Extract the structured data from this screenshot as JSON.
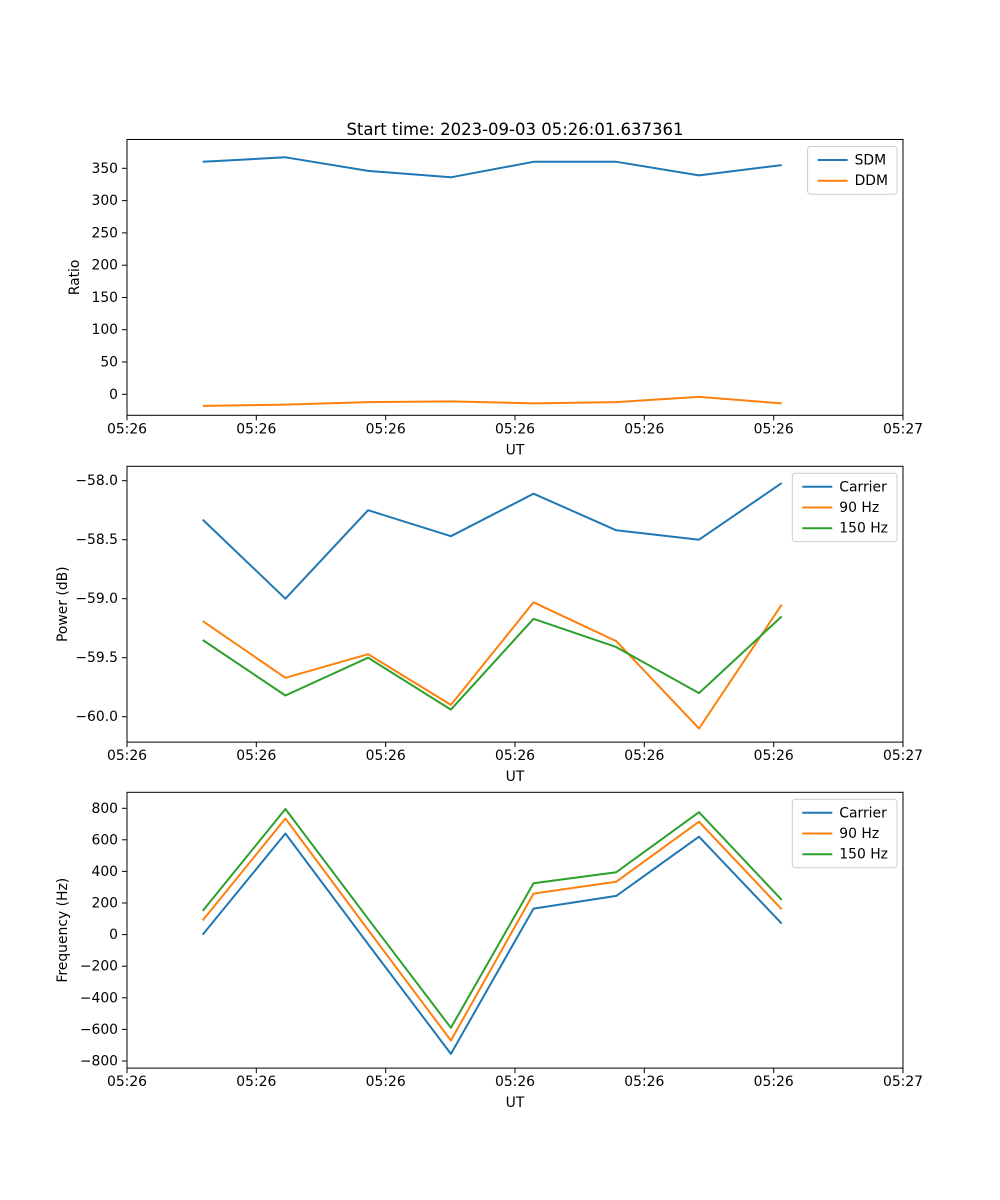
{
  "title": "Start time: 2023-09-03 05:26:01.637361",
  "palette": {
    "blue": "#1f77b4",
    "orange": "#ff7f0e",
    "green": "#2ca02c"
  },
  "chart_data": [
    {
      "type": "line",
      "title": "Start time: 2023-09-03 05:26:01.637361",
      "xlabel": "UT",
      "ylabel": "Ratio",
      "x_tick_labels": [
        "05:26",
        "05:26",
        "05:26",
        "05:26",
        "05:26",
        "05:26",
        "05:27"
      ],
      "x_range": [
        0,
        6
      ],
      "x": [
        0.585,
        1.225,
        1.864,
        2.504,
        3.143,
        3.783,
        4.423,
        5.062
      ],
      "ylim": [
        -32.5,
        394.6
      ],
      "y_ticks": [
        0,
        50,
        100,
        150,
        200,
        250,
        300,
        350
      ],
      "y_tick_labels": [
        "0",
        "50",
        "100",
        "150",
        "200",
        "250",
        "300",
        "350"
      ],
      "legend_position": "upper right",
      "grid": false,
      "series": [
        {
          "name": "SDM",
          "color": "#1f77b4",
          "values": [
            360,
            367,
            346,
            336,
            360,
            360,
            339,
            355
          ]
        },
        {
          "name": "DDM",
          "color": "#ff7f0e",
          "values": [
            -18,
            -16,
            -12,
            -11,
            -14,
            -12,
            -4,
            -14
          ]
        }
      ]
    },
    {
      "type": "line",
      "title": "",
      "xlabel": "UT",
      "ylabel": "Power (dB)",
      "x_tick_labels": [
        "05:26",
        "05:26",
        "05:26",
        "05:26",
        "05:26",
        "05:26",
        "05:27"
      ],
      "x_range": [
        0,
        6
      ],
      "x": [
        0.585,
        1.225,
        1.864,
        2.504,
        3.143,
        3.783,
        4.423,
        5.062
      ],
      "ylim": [
        -60.215,
        -57.878
      ],
      "y_ticks": [
        -58.0,
        -58.5,
        -59.0,
        -59.5,
        -60.0
      ],
      "y_tick_labels": [
        "−58.0",
        "−58.5",
        "−59.0",
        "−59.5",
        "−60.0"
      ],
      "legend_position": "upper right",
      "grid": false,
      "series": [
        {
          "name": "Carrier",
          "color": "#1f77b4",
          "values": [
            -58.33,
            -59.0,
            -58.25,
            -58.47,
            -58.11,
            -58.42,
            -58.5,
            -58.02
          ]
        },
        {
          "name": "90 Hz",
          "color": "#ff7f0e",
          "values": [
            -59.19,
            -59.67,
            -59.47,
            -59.9,
            -59.03,
            -59.36,
            -60.1,
            -59.05
          ]
        },
        {
          "name": "150 Hz",
          "color": "#2ca02c",
          "values": [
            -59.35,
            -59.82,
            -59.5,
            -59.94,
            -59.17,
            -59.41,
            -59.8,
            -59.15
          ]
        }
      ]
    },
    {
      "type": "line",
      "title": "",
      "xlabel": "UT",
      "ylabel": "Frequency (Hz)",
      "x_tick_labels": [
        "05:26",
        "05:26",
        "05:26",
        "05:26",
        "05:26",
        "05:26",
        "05:27"
      ],
      "x_range": [
        0,
        6
      ],
      "x": [
        0.585,
        1.225,
        1.864,
        2.504,
        3.143,
        3.783,
        4.423,
        5.062
      ],
      "ylim": [
        -845,
        901
      ],
      "y_ticks": [
        -800,
        -600,
        -400,
        -200,
        0,
        200,
        400,
        600,
        800
      ],
      "y_tick_labels": [
        "−800",
        "−600",
        "−400",
        "−200",
        "0",
        "200",
        "400",
        "600",
        "800"
      ],
      "legend_position": "upper right",
      "grid": false,
      "series": [
        {
          "name": "Carrier",
          "color": "#1f77b4",
          "values": [
            0,
            640,
            -60,
            -755,
            165,
            245,
            620,
            70
          ]
        },
        {
          "name": "90 Hz",
          "color": "#ff7f0e",
          "values": [
            90,
            735,
            30,
            -670,
            260,
            335,
            715,
            160
          ]
        },
        {
          "name": "150 Hz",
          "color": "#2ca02c",
          "values": [
            150,
            795,
            100,
            -590,
            325,
            395,
            775,
            220
          ]
        }
      ]
    }
  ]
}
